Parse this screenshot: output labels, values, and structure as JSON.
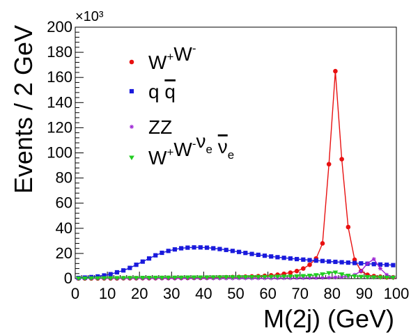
{
  "chart_data": {
    "type": "line",
    "xlabel": "M(2j) (GeV)",
    "ylabel": "Events / 2 GeV",
    "exponent_label": "×10³",
    "xlim": [
      0,
      100
    ],
    "ylim": [
      0,
      200
    ],
    "x_ticks": [
      "0",
      "10",
      "20",
      "30",
      "40",
      "50",
      "60",
      "70",
      "80",
      "90",
      "100"
    ],
    "y_ticks": [
      "0",
      "20",
      "40",
      "60",
      "80",
      "100",
      "120",
      "140",
      "160",
      "180",
      "200"
    ],
    "legend_position": "top-left",
    "series": [
      {
        "name": "W+W-",
        "legend": {
          "base": "W",
          "parts": [
            [
              "W",
              ""
            ],
            [
              "+",
              "sup"
            ],
            [
              "W",
              ""
            ],
            [
              "-",
              "sup"
            ]
          ]
        },
        "color": "#e81010",
        "marker": "circle",
        "x": [
          1,
          3,
          5,
          7,
          9,
          11,
          13,
          15,
          17,
          19,
          21,
          23,
          25,
          27,
          29,
          31,
          33,
          35,
          37,
          39,
          41,
          43,
          45,
          47,
          49,
          51,
          53,
          55,
          57,
          59,
          61,
          63,
          65,
          67,
          69,
          71,
          73,
          75,
          77,
          79,
          81,
          83,
          85,
          87,
          89,
          91,
          93,
          95,
          97,
          99
        ],
        "y": [
          0.1,
          0.1,
          0.1,
          0.1,
          0.2,
          0.2,
          0.2,
          0.3,
          0.3,
          0.3,
          0.4,
          0.4,
          0.4,
          0.5,
          0.5,
          0.5,
          0.6,
          0.6,
          0.7,
          0.7,
          0.8,
          0.9,
          1.0,
          1.1,
          1.2,
          1.3,
          1.5,
          1.7,
          1.9,
          2.2,
          2.6,
          3.1,
          3.8,
          4.7,
          6.0,
          8.0,
          11,
          16,
          28,
          91,
          165,
          95,
          41,
          15,
          6,
          3,
          2,
          1.5,
          1,
          1
        ]
      },
      {
        "name": "q q̄",
        "legend": {
          "parts": [
            [
              "q ",
              ""
            ],
            [
              "q",
              "bar"
            ]
          ]
        },
        "color": "#1a1adc",
        "marker": "square",
        "x": [
          1,
          3,
          5,
          7,
          9,
          11,
          13,
          15,
          17,
          19,
          21,
          23,
          25,
          27,
          29,
          31,
          33,
          35,
          37,
          39,
          41,
          43,
          45,
          47,
          49,
          51,
          53,
          55,
          57,
          59,
          61,
          63,
          65,
          67,
          69,
          71,
          73,
          75,
          77,
          79,
          81,
          83,
          85,
          87,
          89,
          91,
          93,
          95,
          97,
          99
        ],
        "y": [
          0.5,
          0.8,
          1.2,
          1.7,
          2.5,
          3.5,
          5,
          6.5,
          8.5,
          11,
          13.5,
          16,
          18.5,
          20.5,
          22,
          23.2,
          24.1,
          24.6,
          24.8,
          24.8,
          24.6,
          24.1,
          23.5,
          22.8,
          22.0,
          21.2,
          20.4,
          19.6,
          18.9,
          18.2,
          17.6,
          17.0,
          16.5,
          16.0,
          15.5,
          15.1,
          14.7,
          14.3,
          14.0,
          13.6,
          13.3,
          13.0,
          12.7,
          12.4,
          12.1,
          11.8,
          11.5,
          11.2,
          11.0,
          10.7
        ]
      },
      {
        "name": "ZZ",
        "legend": {
          "parts": [
            [
              "ZZ",
              ""
            ]
          ]
        },
        "color": "#9b22d4",
        "marker": "star",
        "x": [
          1,
          3,
          5,
          7,
          9,
          11,
          13,
          15,
          17,
          19,
          21,
          23,
          25,
          27,
          29,
          31,
          33,
          35,
          37,
          39,
          41,
          43,
          45,
          47,
          49,
          51,
          53,
          55,
          57,
          59,
          61,
          63,
          65,
          67,
          69,
          71,
          73,
          75,
          77,
          79,
          81,
          83,
          85,
          87,
          89,
          91,
          93,
          95,
          97,
          99
        ],
        "y": [
          0.1,
          0.1,
          0.1,
          0.1,
          0.1,
          0.1,
          0.1,
          0.1,
          0.1,
          0.1,
          0.1,
          0.1,
          0.1,
          0.1,
          0.1,
          0.1,
          0.1,
          0.2,
          0.2,
          0.2,
          0.2,
          0.2,
          0.2,
          0.2,
          0.2,
          0.3,
          0.3,
          0.3,
          0.3,
          0.3,
          0.3,
          0.4,
          0.4,
          0.4,
          0.5,
          0.5,
          0.6,
          0.6,
          0.7,
          0.8,
          1.0,
          1.3,
          1.8,
          3.0,
          6.0,
          12.0,
          15.5,
          8.0,
          3.0,
          1.0
        ]
      },
      {
        "name": "W+W-νe ν̄e",
        "legend": {
          "parts": [
            [
              "W",
              ""
            ],
            [
              "+",
              "sup"
            ],
            [
              "W",
              ""
            ],
            [
              "-",
              "sup"
            ],
            [
              "ν",
              ""
            ],
            [
              "e",
              "sub"
            ],
            [
              " ",
              ""
            ],
            [
              "ν",
              "bar"
            ],
            [
              "e",
              "sub"
            ]
          ]
        },
        "color": "#22cc22",
        "marker": "triangle",
        "x": [
          1,
          3,
          5,
          7,
          9,
          11,
          13,
          15,
          17,
          19,
          21,
          23,
          25,
          27,
          29,
          31,
          33,
          35,
          37,
          39,
          41,
          43,
          45,
          47,
          49,
          51,
          53,
          55,
          57,
          59,
          61,
          63,
          65,
          67,
          69,
          71,
          73,
          75,
          77,
          79,
          81,
          83,
          85,
          87,
          89,
          91,
          93,
          95,
          97,
          99
        ],
        "y": [
          0.3,
          0.3,
          0.4,
          0.4,
          0.5,
          0.5,
          0.6,
          0.6,
          0.7,
          0.7,
          0.8,
          0.8,
          0.9,
          0.9,
          1.0,
          1.0,
          1.0,
          1.1,
          1.1,
          1.1,
          1.2,
          1.2,
          1.2,
          1.3,
          1.3,
          1.3,
          1.4,
          1.4,
          1.5,
          1.5,
          1.6,
          1.7,
          1.8,
          1.9,
          2.0,
          2.2,
          2.5,
          2.9,
          3.5,
          4.5,
          5.0,
          3.5,
          2.5,
          2.0,
          1.6,
          1.4,
          1.2,
          1.1,
          1.0,
          0.9
        ]
      }
    ]
  }
}
